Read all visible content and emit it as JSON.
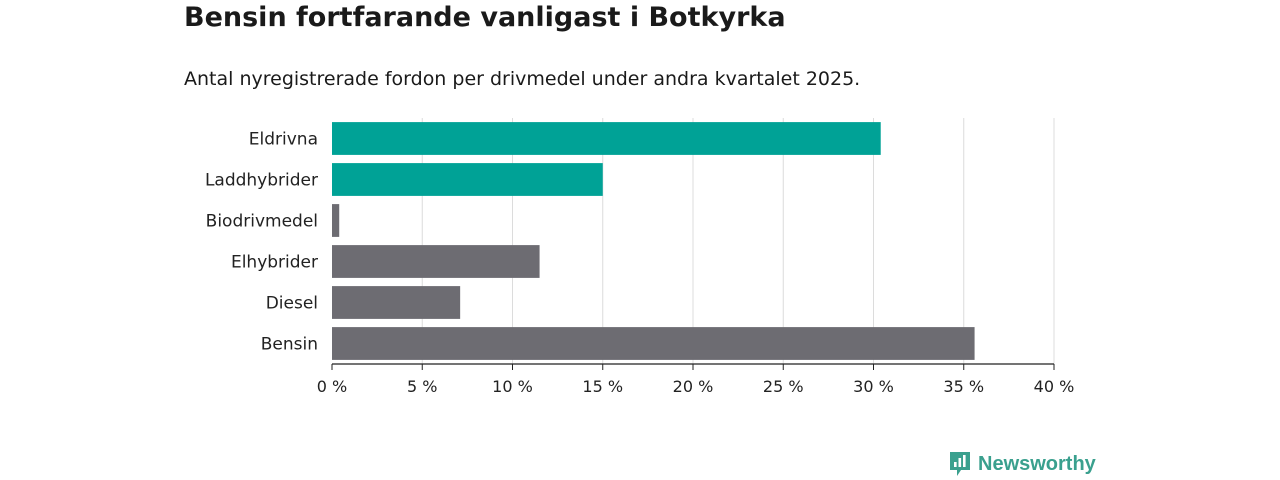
{
  "title": "Bensin fortfarande vanligast i Botkyrka",
  "subtitle": "Antal nyregistrerade fordon per drivmedel under andra kvartalet 2025.",
  "brand": {
    "name": "Newsworthy",
    "icon": "newsworthy-logo-icon",
    "color": "#3aa08e"
  },
  "colors": {
    "highlight": "#00a296",
    "default": "#6d6c72",
    "grid": "#dcdcdc",
    "axis": "#222222"
  },
  "chart_data": {
    "type": "bar",
    "orientation": "horizontal",
    "categories": [
      "Eldrivna",
      "Laddhybrider",
      "Biodrivmedel",
      "Elhybrider",
      "Diesel",
      "Bensin"
    ],
    "values": [
      30.4,
      15.0,
      0.4,
      11.5,
      7.1,
      35.6
    ],
    "highlighted": [
      true,
      true,
      false,
      false,
      false,
      false
    ],
    "xlim": [
      0,
      40
    ],
    "xticks": [
      0,
      5,
      10,
      15,
      20,
      25,
      30,
      35,
      40
    ],
    "tick_labels": [
      "0 %",
      "5 %",
      "10 %",
      "15 %",
      "20 %",
      "25 %",
      "30 %",
      "35 %",
      "40 %"
    ],
    "grid": true,
    "xlabel": "",
    "ylabel": ""
  }
}
